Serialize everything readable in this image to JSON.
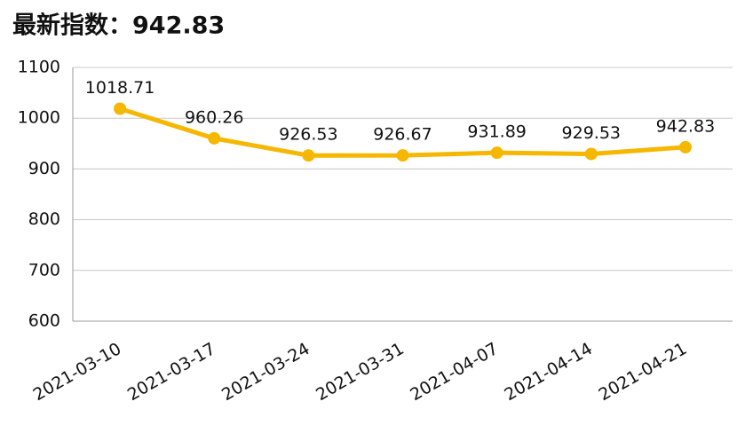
{
  "chart_data": {
    "type": "line",
    "title": "最新指数：942.83",
    "categories": [
      "2021-03-10",
      "2021-03-17",
      "2021-03-24",
      "2021-03-31",
      "2021-04-07",
      "2021-04-14",
      "2021-04-21"
    ],
    "values": [
      1018.71,
      960.26,
      926.53,
      926.67,
      931.89,
      929.53,
      942.83
    ],
    "color": "#f5b700",
    "ylim": [
      600,
      1100
    ],
    "yticks": [
      600,
      700,
      800,
      900,
      1000,
      1100
    ],
    "grid": true
  }
}
